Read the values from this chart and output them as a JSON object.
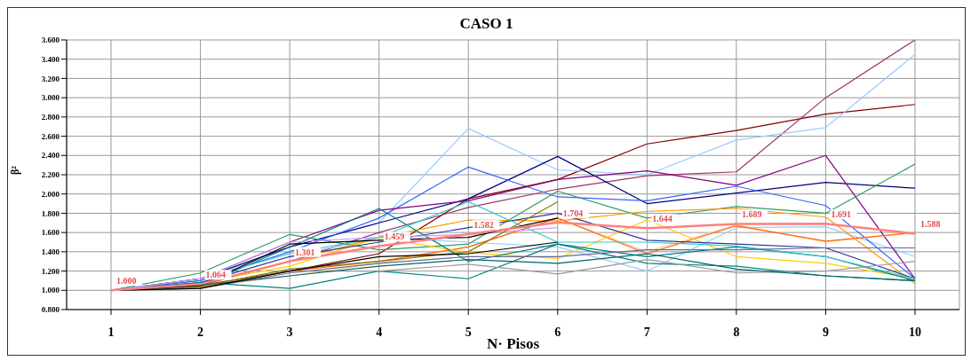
{
  "chart_data": {
    "type": "line",
    "title": "CASO 1",
    "xlabel": "N· Pisos",
    "ylabel": "β²",
    "categories": [
      "1",
      "2",
      "3",
      "4",
      "5",
      "6",
      "7",
      "8",
      "9",
      "10"
    ],
    "ylim": [
      0.8,
      3.6
    ],
    "yticks": [
      {
        "value": 0.8,
        "label": "0.800"
      },
      {
        "value": 1,
        "label": "1.000"
      },
      {
        "value": 1.2,
        "label": "1.200"
      },
      {
        "value": 1.4,
        "label": "1.400"
      },
      {
        "value": 1.6,
        "label": "1.600"
      },
      {
        "value": 1.8,
        "label": "1.800"
      },
      {
        "value": 2,
        "label": "2.000"
      },
      {
        "value": 2.2,
        "label": "2.200"
      },
      {
        "value": 2.4,
        "label": "2.400"
      },
      {
        "value": 2.6,
        "label": "2.600"
      },
      {
        "value": 2.8,
        "label": "2.800"
      },
      {
        "value": 3,
        "label": "3.000"
      },
      {
        "value": 3.2,
        "label": "3.200"
      },
      {
        "value": 3.4,
        "label": "3.400"
      },
      {
        "value": 3.6,
        "label": "3.600"
      }
    ],
    "grid": true,
    "marker": "none",
    "line_style": "solid",
    "series": [
      {
        "color": "#800000",
        "values": [
          1,
          1.05,
          1.2,
          1.38,
          1.95,
          2.15,
          2.52,
          2.66,
          2.83,
          2.93
        ]
      },
      {
        "color": "#993366",
        "values": [
          1,
          1.05,
          1.3,
          1.6,
          1.86,
          2.05,
          2.19,
          2.23,
          3.0,
          3.6
        ]
      },
      {
        "color": "#99ccff",
        "values": [
          1,
          1.1,
          1.45,
          1.7,
          2.68,
          2.25,
          2.2,
          2.56,
          2.69,
          3.45
        ]
      },
      {
        "color": "#99ccff",
        "values": [
          1,
          1.08,
          1.35,
          1.55,
          1.5,
          1.45,
          1.2,
          1.65,
          1.66,
          1.35
        ]
      },
      {
        "color": "#000080",
        "values": [
          1,
          1.12,
          1.45,
          1.7,
          1.95,
          2.39,
          1.9,
          2.01,
          2.12,
          2.06
        ]
      },
      {
        "color": "#3366ff",
        "values": [
          1,
          1.1,
          1.4,
          1.75,
          2.28,
          1.97,
          1.93,
          2.08,
          1.88,
          1.12
        ]
      },
      {
        "color": "#800080",
        "values": [
          1,
          1.12,
          1.5,
          1.83,
          1.93,
          2.15,
          2.24,
          2.09,
          2.4,
          1.12
        ]
      },
      {
        "color": "#339966",
        "values": [
          1,
          1.18,
          1.58,
          1.42,
          1.48,
          2.03,
          1.75,
          1.87,
          1.8,
          2.31
        ]
      },
      {
        "color": "#ff9900",
        "values": [
          1,
          1.06,
          1.3,
          1.55,
          1.73,
          1.72,
          1.82,
          1.85,
          1.76,
          1.07
        ]
      },
      {
        "color": "#ffcc99",
        "values": [
          1,
          1.03,
          1.15,
          1.28,
          1.45,
          1.75,
          1.4,
          1.68,
          1.5,
          1.6
        ]
      },
      {
        "color": "#ff6600",
        "values": [
          1,
          1.03,
          1.2,
          1.3,
          1.45,
          1.75,
          1.38,
          1.67,
          1.51,
          1.6
        ]
      },
      {
        "color": "#ffcc00",
        "values": [
          1,
          1.08,
          1.25,
          1.55,
          1.39,
          1.33,
          1.73,
          1.35,
          1.28,
          1.12
        ]
      },
      {
        "color": "#333399",
        "values": [
          1,
          1.08,
          1.35,
          1.5,
          1.65,
          1.8,
          1.52,
          1.48,
          1.44,
          1.12
        ]
      },
      {
        "color": "#008080",
        "values": [
          1,
          1.05,
          1.45,
          1.85,
          1.3,
          1.48,
          1.35,
          1.45,
          1.35,
          1.1
        ]
      },
      {
        "color": "#008080",
        "values": [
          1,
          1.08,
          1.02,
          1.2,
          1.12,
          1.48,
          1.28,
          1.25,
          1.15,
          1.1
        ]
      },
      {
        "color": "#33cccc",
        "values": [
          1,
          1.12,
          1.38,
          1.55,
          1.92,
          1.5,
          1.5,
          1.46,
          1.35,
          1.12
        ]
      },
      {
        "color": "#999999",
        "values": [
          1,
          1.03,
          1.2,
          1.2,
          1.27,
          1.17,
          1.32,
          1.18,
          1.2,
          1.3
        ]
      },
      {
        "color": "#666699",
        "values": [
          1,
          1.02,
          1.18,
          1.28,
          1.35,
          1.35,
          1.42,
          1.42,
          1.44,
          1.44
        ]
      },
      {
        "color": "#006666",
        "values": [
          1,
          1.05,
          1.15,
          1.25,
          1.32,
          1.28,
          1.38,
          1.22,
          1.15,
          1.1
        ]
      },
      {
        "color": "#cc99ff",
        "values": [
          1,
          1.12,
          1.5,
          1.55,
          1.58,
          1.65,
          null,
          null,
          null,
          null
        ]
      },
      {
        "color": "#808000",
        "values": [
          1,
          1.04,
          1.22,
          1.3,
          1.4,
          1.92,
          null,
          null,
          null,
          null
        ]
      },
      {
        "color": "#000000",
        "values": [
          1,
          1.05,
          1.48,
          1.52,
          1.55,
          1.75,
          null,
          null,
          null,
          null
        ]
      },
      {
        "color": "#000000",
        "values": [
          1,
          1.02,
          1.2,
          1.35,
          1.38,
          1.5,
          null,
          null,
          null,
          null
        ]
      },
      {
        "color": "#ff8080",
        "values": [
          1,
          1.064,
          1.301,
          1.459,
          1.582,
          1.704,
          1.644,
          1.689,
          1.691,
          1.588
        ],
        "value_labels": [
          "1.000",
          "1.064",
          "1.301",
          "1.459",
          "1.582",
          "1.704",
          "1.644",
          "1.689",
          "1.691",
          "1.588"
        ]
      }
    ]
  }
}
